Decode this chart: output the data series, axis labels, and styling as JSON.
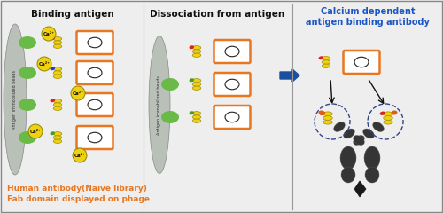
{
  "bg_color": "#eeeeee",
  "panel1_title": "Binding antigen",
  "panel2_title": "Dissociation from antigen",
  "panel3_title": "Calcium dependent\nantigen binding antibody",
  "bottom_text1": "Human antibody(Naïve library)",
  "bottom_text2": "Fab domain displayed on phage",
  "title_color": "#111111",
  "panel3_title_color": "#1a56c4",
  "bottom_text_color": "#e87722",
  "divider_color": "#999999",
  "arrow_color": "#1a4fa0",
  "bead_color": "#b8c0b8",
  "antigen_color": "#6aba48",
  "ca_fill": "#f0d010",
  "ca_edge": "#888800",
  "phage_fill": "#f0d010",
  "phage_edge": "#a09000",
  "fab_red": "#dd2020",
  "fab_blue": "#2040cc",
  "fab_green": "#40a020",
  "fab_orange": "#e06010",
  "box_edge": "#e87722",
  "box_fill": "#ffffff",
  "oval_edge": "#222222",
  "igg_dark": "#353535",
  "igg_mid": "#555555",
  "dash_color": "#334488"
}
